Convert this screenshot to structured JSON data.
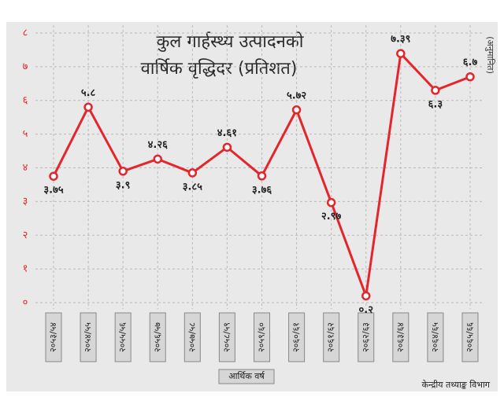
{
  "chart_data": {
    "type": "line",
    "title": [
      "कुल गार्हस्थ्य उत्पादनको",
      "वार्षिक वृद्धिदर (प्रतिशत)"
    ],
    "annotation": "(अनुमानित)",
    "x_label": "आर्थिक वर्ष",
    "source": "केन्द्रीय तथ्याङ्क विभाग",
    "categories": [
      "२०५३/५४",
      "२०५४/५५",
      "२०५५/५६",
      "२०५६/५७",
      "२०५७/५८",
      "२०५८/५९",
      "२०५९/६०",
      "२०६०/६१",
      "२०६१/६२",
      "२०६२/६३",
      "२०६३/६४",
      "२०६४/६५",
      "२०६५/६६"
    ],
    "series": [
      {
        "name": "वार्षिक वृद्धिदर",
        "color": "#e3262b",
        "values": [
          3.75,
          5.8,
          3.9,
          4.26,
          3.85,
          4.61,
          3.76,
          5.72,
          2.97,
          0.2,
          7.39,
          6.3,
          6.7
        ],
        "value_labels": [
          "३.७५",
          "५.८",
          "३.९",
          "४.२६",
          "३.८५",
          "४.६१",
          "३.७६",
          "५.७२",
          "२.९७",
          "०.२",
          "७.३९",
          "६.३",
          "६.७"
        ]
      }
    ],
    "ylim": [
      0,
      8
    ],
    "yticks": [
      {
        "value": 0,
        "label": "०"
      },
      {
        "value": 1,
        "label": "१"
      },
      {
        "value": 2,
        "label": "२"
      },
      {
        "value": 3,
        "label": "३"
      },
      {
        "value": 4,
        "label": "४"
      },
      {
        "value": 5,
        "label": "५"
      },
      {
        "value": 6,
        "label": "६"
      },
      {
        "value": 7,
        "label": "७"
      },
      {
        "value": 8,
        "label": "८"
      }
    ],
    "grid": true
  }
}
